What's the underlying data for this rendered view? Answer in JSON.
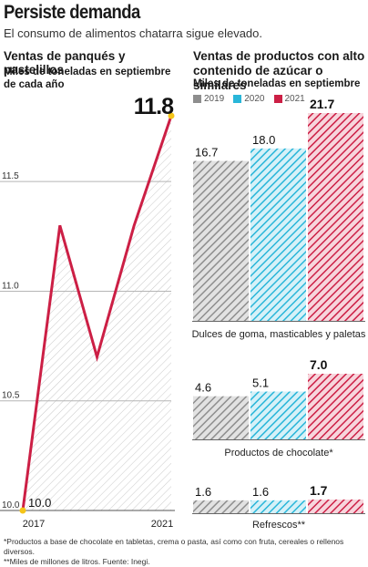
{
  "header": {
    "title": "Persiste demanda",
    "subtitle": "El consumo de alimentos chatarra sigue elevado."
  },
  "colors": {
    "2019": "#8e8e8e",
    "2020": "#29b6d9",
    "2021": "#cc1f45",
    "line": "#cc1f45",
    "marker": "#f5c518"
  },
  "chart_data": [
    {
      "type": "line",
      "title": "Ventas de panqués y pastelillos",
      "subtitle": "Miles de toneladas en septiembre de cada año",
      "x": [
        2017,
        2018,
        2019,
        2020,
        2021
      ],
      "x_tick_labels": [
        "2017",
        "2021"
      ],
      "series": [
        {
          "values": [
            10.0,
            11.3,
            10.7,
            11.3,
            11.8
          ]
        }
      ],
      "y_ticks": [
        "10.0",
        "10.5",
        "11.0",
        "11.5"
      ],
      "ylim": [
        10.0,
        11.8
      ],
      "data_labels": {
        "first": "10.0",
        "last": "11.8"
      },
      "grid": true
    },
    {
      "type": "bar",
      "title": "Ventas de productos con alto contenido de azúcar o similares",
      "subtitle": "Miles de toneladas en septiembre",
      "legend": [
        "2019",
        "2020",
        "2021"
      ],
      "groups": [
        {
          "label": "Dulces de goma, masticables y paletas",
          "values": [
            16.7,
            18.0,
            21.7
          ],
          "labels": [
            "16.7",
            "18.0",
            "21.7"
          ]
        },
        {
          "label": "Productos de chocolate*",
          "values": [
            4.6,
            5.1,
            7.0
          ],
          "labels": [
            "4.6",
            "5.1",
            "7.0"
          ]
        },
        {
          "label": "Refrescos**",
          "values": [
            1.6,
            1.6,
            1.7
          ],
          "labels": [
            "1.6",
            "1.6",
            "1.7"
          ]
        }
      ]
    }
  ],
  "footnotes": [
    "*Productos a base de chocolate en tabletas, crema o pasta, así como con fruta, cereales o rellenos diversos.",
    "**Miles de millones de litros. Fuente: Inegi."
  ]
}
